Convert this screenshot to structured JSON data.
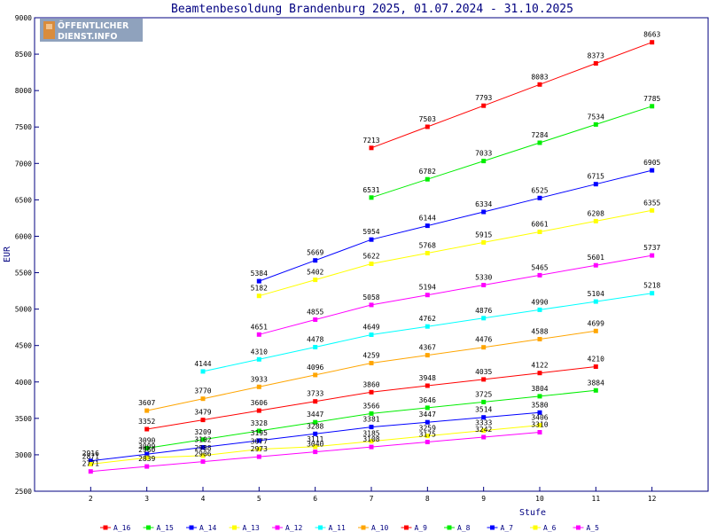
{
  "chart_data": {
    "type": "line",
    "title": "Beamtenbesoldung Brandenburg 2025, 01.07.2024 - 31.10.2025",
    "xlabel": "Stufe",
    "ylabel": "EUR",
    "xlim": [
      1,
      13
    ],
    "ylim": [
      2500,
      9000
    ],
    "x_ticks": [
      2,
      3,
      4,
      5,
      6,
      7,
      8,
      9,
      10,
      11,
      12
    ],
    "y_ticks": [
      2500,
      3000,
      3500,
      4000,
      4500,
      5000,
      5500,
      6000,
      6500,
      7000,
      7500,
      8000,
      8500,
      9000
    ],
    "grid": false,
    "legend_position": "bottom",
    "logo": {
      "line1": "ÖFFENTLICHER",
      "line2": "DIENST.INFO"
    },
    "series": [
      {
        "name": "A_16",
        "color": "#ff0000",
        "x": [
          7,
          8,
          9,
          10,
          11,
          12
        ],
        "values": [
          7213,
          7503,
          7793,
          8083,
          8373,
          8663
        ]
      },
      {
        "name": "A_15",
        "color": "#00ee00",
        "x": [
          7,
          8,
          9,
          10,
          11,
          12
        ],
        "values": [
          6531,
          6782,
          7033,
          7284,
          7534,
          7785
        ]
      },
      {
        "name": "A_14",
        "color": "#0000ff",
        "x": [
          5,
          6,
          7,
          8,
          9,
          10,
          11,
          12
        ],
        "values": [
          5384,
          5669,
          5954,
          6144,
          6334,
          6525,
          6715,
          6905
        ]
      },
      {
        "name": "A_13",
        "color": "#ffff00",
        "x": [
          5,
          6,
          7,
          8,
          9,
          10,
          11,
          12
        ],
        "values": [
          5182,
          5402,
          5622,
          5768,
          5915,
          6061,
          6208,
          6355
        ]
      },
      {
        "name": "A_12",
        "color": "#ff00ff",
        "x": [
          5,
          6,
          7,
          8,
          9,
          10,
          11,
          12
        ],
        "values": [
          4651,
          4855,
          5058,
          5194,
          5330,
          5465,
          5601,
          5737
        ]
      },
      {
        "name": "A_11",
        "color": "#00ffff",
        "x": [
          4,
          5,
          6,
          7,
          8,
          9,
          10,
          11,
          12
        ],
        "values": [
          4144,
          4310,
          4478,
          4649,
          4762,
          4876,
          4990,
          5104,
          5218
        ]
      },
      {
        "name": "A_10",
        "color": "#ffa500",
        "x": [
          3,
          4,
          5,
          6,
          7,
          8,
          9,
          10,
          11
        ],
        "values": [
          3607,
          3770,
          3933,
          4096,
          4259,
          4367,
          4476,
          4588,
          4699
        ]
      },
      {
        "name": "A_9",
        "color": "#ff0000",
        "x": [
          3,
          4,
          5,
          6,
          7,
          8,
          9,
          10,
          11
        ],
        "values": [
          3352,
          3479,
          3606,
          3733,
          3860,
          3948,
          4035,
          4122,
          4210
        ]
      },
      {
        "name": "A_8",
        "color": "#00ee00",
        "x": [
          3,
          4,
          5,
          6,
          7,
          8,
          9,
          10,
          11
        ],
        "values": [
          3090,
          3209,
          3328,
          3447,
          3566,
          3646,
          3725,
          3804,
          3884
        ]
      },
      {
        "name": "A_7",
        "color": "#0000ff",
        "x": [
          2,
          3,
          4,
          5,
          6,
          7,
          8,
          9,
          10
        ],
        "values": [
          2916,
          3009,
          3102,
          3195,
          3288,
          3381,
          3447,
          3514,
          3580
        ]
      },
      {
        "name": "A_6",
        "color": "#ffff00",
        "x": [
          2,
          3,
          4,
          5,
          6,
          7,
          8,
          9,
          10
        ],
        "values": [
          2871,
          2960,
          2988,
          3077,
          3111,
          3185,
          3259,
          3333,
          3406
        ]
      },
      {
        "name": "A_5",
        "color": "#ff00ff",
        "x": [
          2,
          3,
          4,
          5,
          6,
          7,
          8,
          9,
          10
        ],
        "values": [
          2771,
          2839,
          2906,
          2973,
          3040,
          3108,
          3175,
          3242,
          3310
        ]
      }
    ]
  }
}
